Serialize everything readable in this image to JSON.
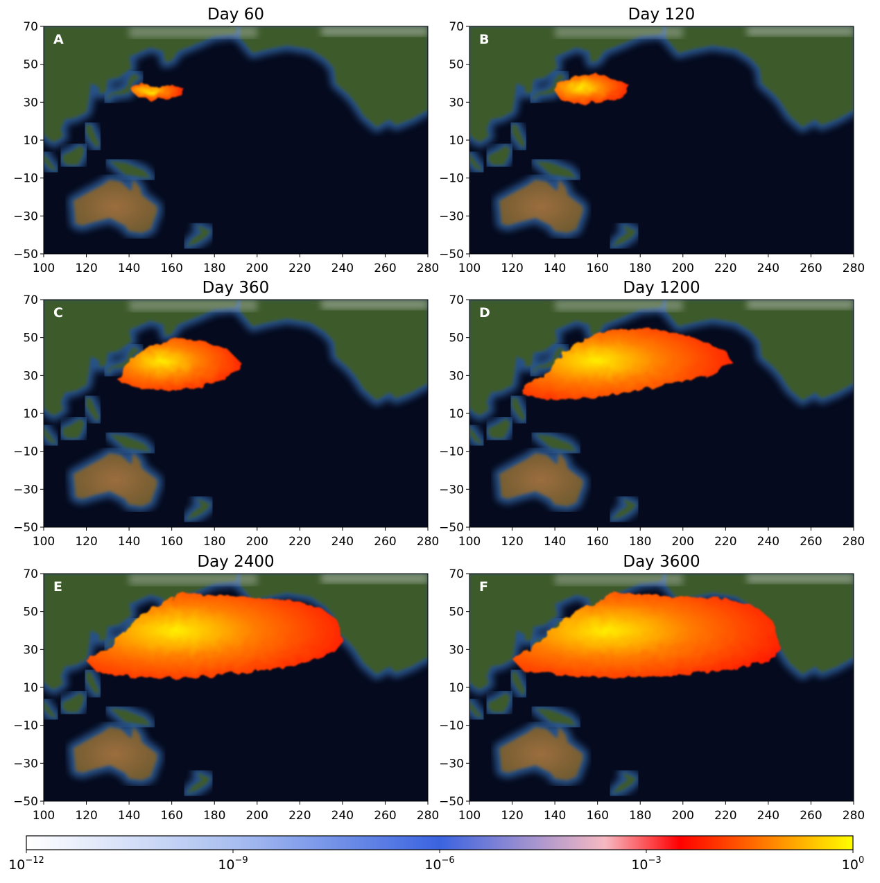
{
  "colors": {
    "ocean_deep": "#050a1e",
    "ocean_shelf": "#2f5f9a",
    "land_green": "#3d5a2c",
    "land_desert": "#9c6e3e",
    "snow": "#d8dde0",
    "plume_low": "#ff1a00",
    "plume_mid": "#ff7a00",
    "plume_high": "#ffee00"
  },
  "axes": {
    "x_ticks": [
      100,
      120,
      140,
      160,
      180,
      200,
      220,
      240,
      260,
      280
    ],
    "y_ticks": [
      70,
      50,
      30,
      10,
      -10,
      -30,
      -50
    ],
    "xlim": [
      100,
      280
    ],
    "ylim": [
      -50,
      70
    ]
  },
  "panels": [
    {
      "title": "Day 60",
      "label": "A",
      "plume": [
        [
          141,
          39
        ],
        [
          146,
          40
        ],
        [
          152,
          38
        ],
        [
          160,
          39
        ],
        [
          166,
          37
        ],
        [
          165,
          34
        ],
        [
          158,
          32
        ],
        [
          150,
          31
        ],
        [
          144,
          33
        ],
        [
          141,
          36
        ]
      ]
    },
    {
      "title": "Day 120",
      "label": "B",
      "plume": [
        [
          141,
          40
        ],
        [
          150,
          44
        ],
        [
          160,
          45
        ],
        [
          168,
          42
        ],
        [
          175,
          39
        ],
        [
          172,
          33
        ],
        [
          163,
          30
        ],
        [
          152,
          29
        ],
        [
          143,
          31
        ],
        [
          140,
          36
        ]
      ]
    },
    {
      "title": "Day 360",
      "label": "C",
      "plume": [
        [
          140,
          38
        ],
        [
          150,
          46
        ],
        [
          162,
          50
        ],
        [
          175,
          48
        ],
        [
          186,
          44
        ],
        [
          193,
          36
        ],
        [
          185,
          28
        ],
        [
          170,
          23
        ],
        [
          155,
          22
        ],
        [
          143,
          24
        ],
        [
          135,
          27
        ],
        [
          138,
          33
        ]
      ]
    },
    {
      "title": "Day 1200",
      "label": "D",
      "plume": [
        [
          140,
          38
        ],
        [
          150,
          47
        ],
        [
          165,
          54
        ],
        [
          185,
          55
        ],
        [
          205,
          50
        ],
        [
          220,
          43
        ],
        [
          223,
          37
        ],
        [
          212,
          30
        ],
        [
          195,
          26
        ],
        [
          175,
          21
        ],
        [
          155,
          18
        ],
        [
          138,
          17
        ],
        [
          125,
          20
        ],
        [
          128,
          26
        ],
        [
          138,
          32
        ]
      ]
    },
    {
      "title": "Day 2400",
      "label": "E",
      "plume": [
        [
          138,
          40
        ],
        [
          148,
          50
        ],
        [
          165,
          60
        ],
        [
          190,
          58
        ],
        [
          215,
          56
        ],
        [
          230,
          52
        ],
        [
          238,
          45
        ],
        [
          240,
          34
        ],
        [
          236,
          28
        ],
        [
          220,
          22
        ],
        [
          195,
          18
        ],
        [
          170,
          15
        ],
        [
          145,
          15
        ],
        [
          125,
          18
        ],
        [
          120,
          24
        ],
        [
          130,
          30
        ]
      ]
    },
    {
      "title": "Day 3600",
      "label": "F",
      "plume": [
        [
          138,
          40
        ],
        [
          150,
          50
        ],
        [
          168,
          60
        ],
        [
          195,
          58
        ],
        [
          220,
          57
        ],
        [
          235,
          52
        ],
        [
          242,
          45
        ],
        [
          246,
          30
        ],
        [
          240,
          24
        ],
        [
          220,
          19
        ],
        [
          195,
          16
        ],
        [
          170,
          15
        ],
        [
          145,
          16
        ],
        [
          125,
          19
        ],
        [
          120,
          25
        ],
        [
          130,
          31
        ]
      ]
    }
  ],
  "colorbar": {
    "scale": "log",
    "range": [
      1e-12,
      1
    ],
    "ticks": [
      {
        "base": "10",
        "exp": "−12"
      },
      {
        "base": "10",
        "exp": "−9"
      },
      {
        "base": "10",
        "exp": "−6"
      },
      {
        "base": "10",
        "exp": "−3"
      },
      {
        "base": "10",
        "exp": "0"
      }
    ],
    "stops": [
      {
        "pos": 0,
        "color": "#ffffff"
      },
      {
        "pos": 0.25,
        "color": "#aabff0"
      },
      {
        "pos": 0.5,
        "color": "#3b63e0"
      },
      {
        "pos": 0.7,
        "color": "#f6b9c2"
      },
      {
        "pos": 0.79,
        "color": "#ff0000"
      },
      {
        "pos": 0.88,
        "color": "#ff6a00"
      },
      {
        "pos": 1,
        "color": "#ffff00"
      }
    ]
  }
}
